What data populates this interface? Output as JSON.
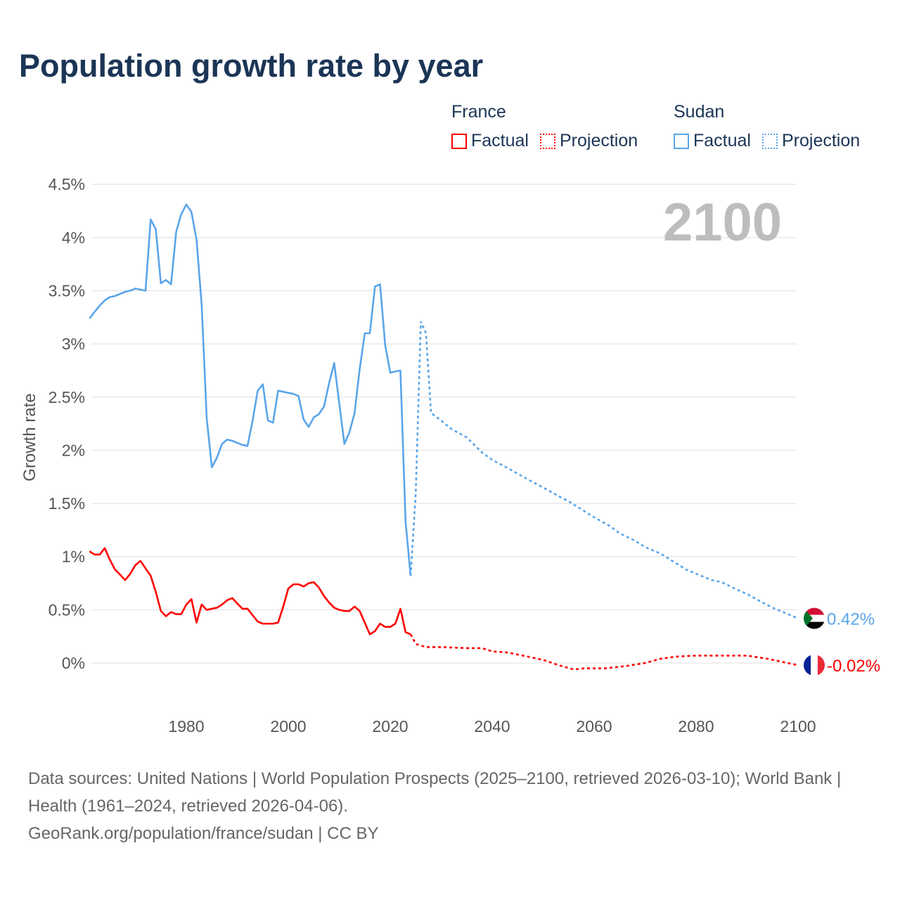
{
  "title": "Population growth rate by year",
  "legend": {
    "groups": [
      {
        "name": "France",
        "factual": "Factual",
        "projection": "Projection",
        "color": "#ff0000"
      },
      {
        "name": "Sudan",
        "factual": "Factual",
        "projection": "Projection",
        "color": "#5aa5ea"
      }
    ]
  },
  "footer": {
    "sources": "Data sources: United Nations | World Population Prospects (2025–2100, retrieved 2026-03-10); World Bank | Health (1961–2024, retrieved 2026-04-06).",
    "link": "GeoRank.org/population/france/sudan | CC BY"
  },
  "chart_data": {
    "type": "line",
    "title": "Population growth rate by year",
    "xlabel": "",
    "ylabel": "Growth rate",
    "year_label": "2100",
    "xlim": [
      1961,
      2100
    ],
    "ylim": [
      -0.3,
      4.55
    ],
    "x_ticks": [
      1980,
      2000,
      2020,
      2040,
      2060,
      2080,
      2100
    ],
    "y_ticks": [
      0,
      0.5,
      1,
      1.5,
      2,
      2.5,
      3,
      3.5,
      4,
      4.5
    ],
    "y_tick_labels": [
      "0%",
      "0.5%",
      "1%",
      "1.5%",
      "2%",
      "2.5%",
      "3%",
      "3.5%",
      "4%",
      "4.5%"
    ],
    "grid": true,
    "series": [
      {
        "name": "Sudan",
        "color": "#5aa5ea",
        "end_label": "0.42%",
        "factual": {
          "start_year": 1961,
          "values": [
            3.24,
            3.3,
            3.36,
            3.41,
            3.44,
            3.45,
            3.47,
            3.49,
            3.5,
            3.52,
            3.51,
            3.5,
            4.17,
            4.08,
            3.57,
            3.6,
            3.56,
            4.05,
            4.22,
            4.31,
            4.24,
            3.98,
            3.37,
            2.3,
            1.84,
            1.93,
            2.06,
            2.1,
            2.09,
            2.07,
            2.05,
            2.04,
            2.28,
            2.56,
            2.62,
            2.28,
            2.26,
            2.56,
            2.55,
            2.54,
            2.53,
            2.51,
            2.29,
            2.22,
            2.31,
            2.34,
            2.41,
            2.63,
            2.82,
            2.44,
            2.06,
            2.17,
            2.35,
            2.76,
            3.1,
            3.1,
            3.54,
            3.56,
            2.99,
            2.73,
            2.74,
            2.75,
            1.33,
            0.82
          ]
        },
        "projection": [
          [
            2024,
            0.82
          ],
          [
            2025,
            1.6
          ],
          [
            2026,
            3.21
          ],
          [
            2027,
            3.1
          ],
          [
            2028,
            2.35
          ],
          [
            2030,
            2.28
          ],
          [
            2032,
            2.2
          ],
          [
            2035,
            2.12
          ],
          [
            2038,
            1.98
          ],
          [
            2040,
            1.91
          ],
          [
            2042,
            1.86
          ],
          [
            2045,
            1.78
          ],
          [
            2048,
            1.7
          ],
          [
            2050,
            1.65
          ],
          [
            2053,
            1.57
          ],
          [
            2055,
            1.52
          ],
          [
            2058,
            1.43
          ],
          [
            2060,
            1.37
          ],
          [
            2063,
            1.29
          ],
          [
            2065,
            1.22
          ],
          [
            2068,
            1.15
          ],
          [
            2070,
            1.09
          ],
          [
            2073,
            1.03
          ],
          [
            2075,
            0.97
          ],
          [
            2078,
            0.88
          ],
          [
            2080,
            0.84
          ],
          [
            2083,
            0.78
          ],
          [
            2085,
            0.76
          ],
          [
            2088,
            0.69
          ],
          [
            2090,
            0.65
          ],
          [
            2093,
            0.57
          ],
          [
            2095,
            0.52
          ],
          [
            2098,
            0.46
          ],
          [
            2100,
            0.42
          ]
        ]
      },
      {
        "name": "France",
        "color": "#ff0000",
        "end_label": "-0.02%",
        "factual": {
          "start_year": 1961,
          "values": [
            1.05,
            1.02,
            1.02,
            1.08,
            0.97,
            0.88,
            0.83,
            0.78,
            0.84,
            0.92,
            0.96,
            0.89,
            0.82,
            0.67,
            0.49,
            0.44,
            0.48,
            0.46,
            0.46,
            0.55,
            0.6,
            0.38,
            0.55,
            0.5,
            0.51,
            0.52,
            0.55,
            0.59,
            0.61,
            0.56,
            0.51,
            0.51,
            0.45,
            0.39,
            0.37,
            0.37,
            0.37,
            0.38,
            0.53,
            0.7,
            0.74,
            0.74,
            0.72,
            0.75,
            0.76,
            0.71,
            0.63,
            0.57,
            0.52,
            0.5,
            0.49,
            0.49,
            0.53,
            0.49,
            0.38,
            0.27,
            0.3,
            0.37,
            0.34,
            0.34,
            0.37,
            0.51,
            0.29,
            0.27
          ]
        },
        "projection": [
          [
            2024,
            0.27
          ],
          [
            2025,
            0.18
          ],
          [
            2027,
            0.15
          ],
          [
            2030,
            0.15
          ],
          [
            2035,
            0.14
          ],
          [
            2038,
            0.14
          ],
          [
            2040,
            0.11
          ],
          [
            2043,
            0.1
          ],
          [
            2046,
            0.07
          ],
          [
            2050,
            0.03
          ],
          [
            2053,
            -0.02
          ],
          [
            2056,
            -0.06
          ],
          [
            2058,
            -0.05
          ],
          [
            2062,
            -0.05
          ],
          [
            2066,
            -0.03
          ],
          [
            2070,
            0.0
          ],
          [
            2073,
            0.04
          ],
          [
            2076,
            0.06
          ],
          [
            2080,
            0.07
          ],
          [
            2085,
            0.07
          ],
          [
            2090,
            0.07
          ],
          [
            2094,
            0.04
          ],
          [
            2097,
            0.01
          ],
          [
            2100,
            -0.02
          ]
        ]
      }
    ]
  }
}
